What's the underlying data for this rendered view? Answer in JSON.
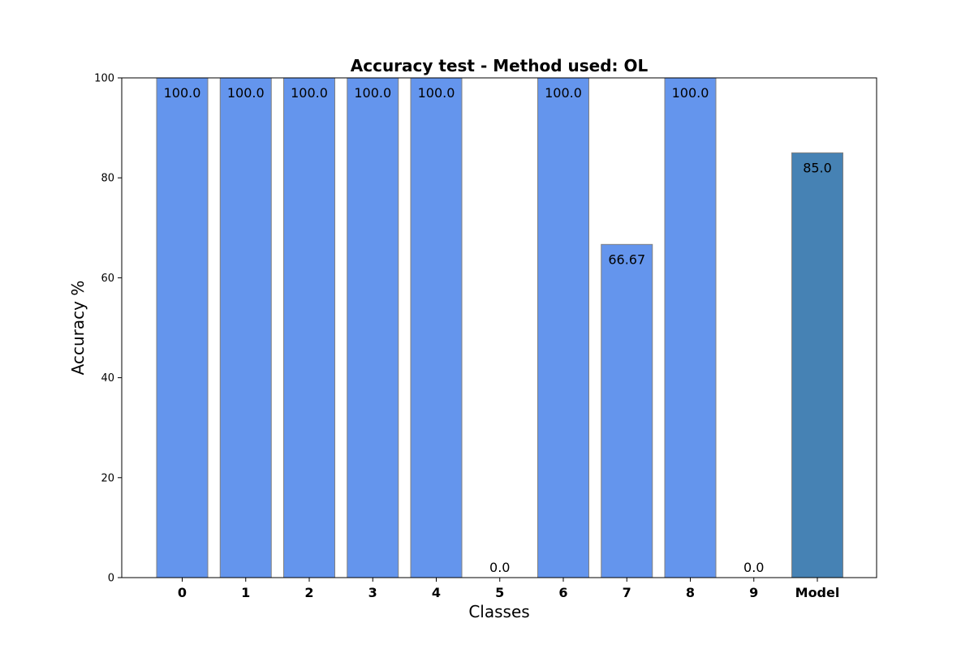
{
  "chart_data": {
    "type": "bar",
    "title": "Accuracy test - Method used: OL",
    "xlabel": "Classes",
    "ylabel": "Accuracy %",
    "ylim": [
      0,
      100
    ],
    "yticks": [
      0,
      20,
      40,
      60,
      80,
      100
    ],
    "categories": [
      "0",
      "1",
      "2",
      "3",
      "4",
      "5",
      "6",
      "7",
      "8",
      "9",
      "Model"
    ],
    "values": [
      100.0,
      100.0,
      100.0,
      100.0,
      100.0,
      0.0,
      100.0,
      66.67,
      100.0,
      0.0,
      85.0
    ],
    "value_labels": [
      "100.0",
      "100.0",
      "100.0",
      "100.0",
      "100.0",
      "0.0",
      "100.0",
      "66.67",
      "100.0",
      "0.0",
      "85.0"
    ],
    "grid": false,
    "colors": {
      "class_bar": "#6495ed",
      "model_bar": "#4682b4",
      "bar_edge": "#808080"
    }
  }
}
